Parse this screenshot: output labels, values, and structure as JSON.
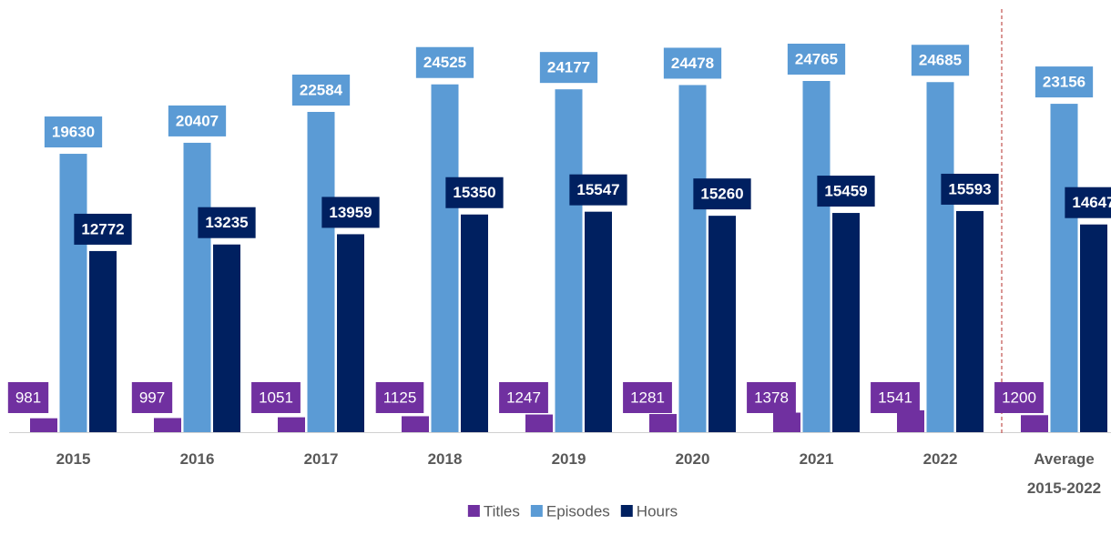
{
  "chart_data": {
    "type": "bar",
    "categories": [
      "2015",
      "2016",
      "2017",
      "2018",
      "2019",
      "2020",
      "2021",
      "2022",
      "Average 2015-2022"
    ],
    "series": [
      {
        "name": "Titles",
        "color": "#7030a0",
        "values": [
          981,
          997,
          1051,
          1125,
          1247,
          1281,
          1378,
          1541,
          1200
        ]
      },
      {
        "name": "Episodes",
        "color": "#5b9bd5",
        "values": [
          19630,
          20407,
          22584,
          24525,
          24177,
          24478,
          24765,
          24685,
          23156
        ]
      },
      {
        "name": "Hours",
        "color": "#002060",
        "values": [
          12772,
          13235,
          13959,
          15350,
          15547,
          15260,
          15459,
          15593,
          14647
        ]
      }
    ],
    "legend": "bottom"
  }
}
